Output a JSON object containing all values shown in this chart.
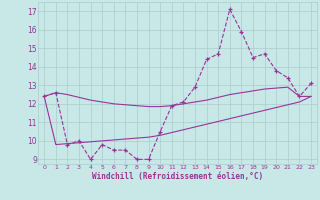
{
  "xlabel": "Windchill (Refroidissement éolien,°C)",
  "x": [
    0,
    1,
    2,
    3,
    4,
    5,
    6,
    7,
    8,
    9,
    10,
    11,
    12,
    13,
    14,
    15,
    16,
    17,
    18,
    19,
    20,
    21,
    22,
    23
  ],
  "y_main": [
    12.4,
    12.6,
    9.8,
    10.0,
    9.0,
    9.8,
    9.5,
    9.5,
    9.0,
    9.0,
    10.5,
    11.9,
    12.1,
    12.9,
    14.4,
    14.7,
    17.1,
    15.9,
    14.5,
    14.7,
    13.8,
    13.4,
    12.4,
    13.1
  ],
  "y_upper": [
    12.4,
    12.6,
    12.5,
    12.35,
    12.2,
    12.1,
    12.0,
    11.95,
    11.9,
    11.85,
    11.85,
    11.9,
    12.0,
    12.1,
    12.2,
    12.35,
    12.5,
    12.6,
    12.7,
    12.8,
    12.85,
    12.9,
    12.4,
    12.4
  ],
  "y_lower": [
    12.4,
    9.8,
    9.85,
    9.9,
    9.95,
    10.0,
    10.05,
    10.1,
    10.15,
    10.2,
    10.3,
    10.45,
    10.6,
    10.75,
    10.9,
    11.05,
    11.2,
    11.35,
    11.5,
    11.65,
    11.8,
    11.95,
    12.1,
    12.4
  ],
  "ylim": [
    8.75,
    17.5
  ],
  "xlim": [
    -0.5,
    23.5
  ],
  "yticks": [
    9,
    10,
    11,
    12,
    13,
    14,
    15,
    16,
    17
  ],
  "xticks": [
    0,
    1,
    2,
    3,
    4,
    5,
    6,
    7,
    8,
    9,
    10,
    11,
    12,
    13,
    14,
    15,
    16,
    17,
    18,
    19,
    20,
    21,
    22,
    23
  ],
  "color": "#993399",
  "bg_color": "#c8e8e8",
  "grid_color": "#aacccc"
}
